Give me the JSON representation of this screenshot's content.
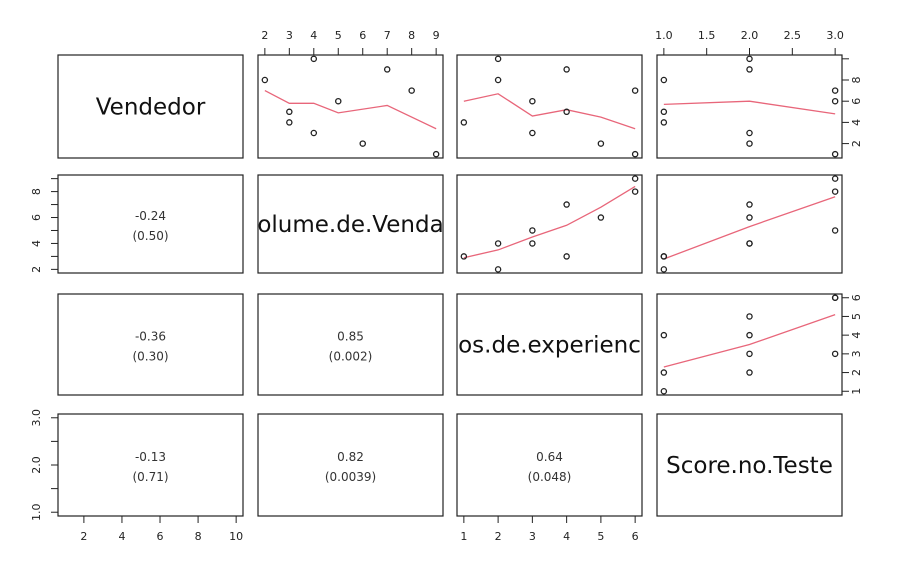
{
  "chart_data": {
    "type": "scatter-matrix",
    "variables": [
      "Vendedor",
      "Volume.de.Vendas",
      "Anos.de.experiencia",
      "Score.no.Teste"
    ],
    "diag_labels": [
      "Vendedor",
      "olume.de.Venda",
      "os.de.experienc",
      "Score.no.Teste"
    ],
    "data": {
      "Vendedor": [
        1,
        2,
        3,
        4,
        5,
        6,
        7,
        8,
        9,
        10
      ],
      "Volume.de.Vendas": [
        9,
        6,
        4,
        3,
        3,
        5,
        8,
        2,
        7,
        4
      ],
      "Anos.de.experiencia": [
        6,
        5,
        3,
        1,
        4,
        3,
        6,
        2,
        4,
        2
      ],
      "Score.no.Teste": [
        3,
        2,
        2,
        1,
        1,
        3,
        3,
        1,
        2,
        2
      ]
    },
    "ranges": [
      [
        1,
        10
      ],
      [
        2,
        9
      ],
      [
        1,
        6
      ],
      [
        1,
        3
      ]
    ],
    "smooth_color": "#e8667a",
    "smooth_lines": {
      "0-1": [
        [
          2,
          7.0
        ],
        [
          3,
          5.8
        ],
        [
          4,
          5.8
        ],
        [
          5,
          4.9
        ],
        [
          7,
          5.6
        ],
        [
          9,
          3.4
        ]
      ],
      "0-2": [
        [
          1,
          6.0
        ],
        [
          2,
          6.7
        ],
        [
          3,
          4.6
        ],
        [
          4,
          5.2
        ],
        [
          5,
          4.5
        ],
        [
          6,
          3.4
        ]
      ],
      "0-3": [
        [
          1,
          5.7
        ],
        [
          2,
          6.0
        ],
        [
          3,
          4.8
        ]
      ],
      "1-2": [
        [
          1,
          2.9
        ],
        [
          2,
          3.5
        ],
        [
          3,
          4.5
        ],
        [
          4,
          5.4
        ],
        [
          5,
          6.8
        ],
        [
          6,
          8.4
        ]
      ],
      "1-3": [
        [
          1,
          2.8
        ],
        [
          2,
          5.3
        ],
        [
          3,
          7.6
        ]
      ],
      "2-3": [
        [
          1,
          2.3
        ],
        [
          2,
          3.5
        ],
        [
          3,
          5.1
        ]
      ]
    },
    "correlations": {
      "1-0": {
        "r": "-0.24",
        "p": "(0.50)"
      },
      "2-0": {
        "r": "-0.36",
        "p": "(0.30)"
      },
      "2-1": {
        "r": "0.85",
        "p": "(0.002)"
      },
      "3-0": {
        "r": "-0.13",
        "p": "(0.71)"
      },
      "3-1": {
        "r": "0.82",
        "p": "(0.0039)"
      },
      "3-2": {
        "r": "0.64",
        "p": "(0.048)"
      }
    },
    "axes": {
      "top_col1": {
        "ticks": [
          2,
          3,
          4,
          5,
          6,
          7,
          8,
          9
        ],
        "labels": [
          "2",
          "3",
          "4",
          "5",
          "6",
          "7",
          "8",
          "9"
        ]
      },
      "top_col3": {
        "ticks": [
          1.0,
          1.5,
          2.0,
          2.5,
          3.0
        ],
        "labels": [
          "1.0",
          "1.5",
          "2.0",
          "2.5",
          "3.0"
        ]
      },
      "bottom_col0": {
        "ticks": [
          2,
          4,
          6,
          8,
          10
        ],
        "labels": [
          "2",
          "4",
          "6",
          "8",
          "10"
        ]
      },
      "bottom_col2": {
        "ticks": [
          1,
          2,
          3,
          4,
          5,
          6
        ],
        "labels": [
          "1",
          "2",
          "3",
          "4",
          "5",
          "6"
        ]
      },
      "left_row1": {
        "ticks": [
          2,
          3,
          4,
          5,
          6,
          7,
          8,
          9
        ],
        "labels": [
          "2",
          "",
          "4",
          "",
          "6",
          "",
          "8",
          ""
        ]
      },
      "left_row3": {
        "ticks": [
          1.0,
          1.5,
          2.0,
          2.5,
          3.0
        ],
        "labels": [
          "1.0",
          "",
          "2.0",
          "",
          "3.0"
        ]
      },
      "right_row0": {
        "ticks": [
          2,
          4,
          6,
          8,
          10
        ],
        "labels": [
          "2",
          "4",
          "6",
          "8",
          ""
        ]
      },
      "right_row2": {
        "ticks": [
          1,
          2,
          3,
          4,
          5,
          6
        ],
        "labels": [
          "1",
          "2",
          "3",
          "4",
          "5",
          "6"
        ]
      }
    }
  }
}
